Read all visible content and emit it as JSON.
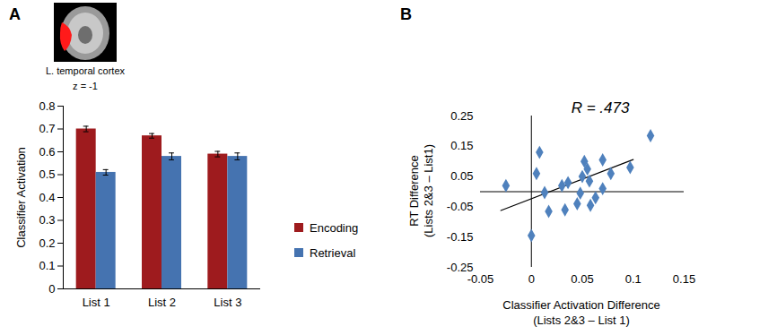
{
  "panel_labels": [
    "A",
    "B"
  ],
  "image": {
    "label": "L. temporal cortex",
    "slice": "z = -1"
  },
  "chart_data": [
    {
      "type": "bar",
      "categories": [
        "List 1",
        "List 2",
        "List 3"
      ],
      "series": [
        {
          "name": "Encoding",
          "color": "#9e1b1e",
          "values": [
            0.7,
            0.67,
            0.59
          ],
          "errors": [
            0.012,
            0.01,
            0.012
          ]
        },
        {
          "name": "Retrieval",
          "color": "#4573b0",
          "values": [
            0.51,
            0.58,
            0.58
          ],
          "errors": [
            0.012,
            0.015,
            0.015
          ]
        }
      ],
      "y_label": "Classifier Activation",
      "ylim": [
        0,
        0.8
      ],
      "yticks": [
        0,
        0.1,
        0.2,
        0.3,
        0.4,
        0.5,
        0.6,
        0.7,
        0.8
      ],
      "legend": "right",
      "grid": false
    },
    {
      "type": "scatter",
      "x": [
        -0.025,
        0.008,
        0.005,
        0,
        0.013,
        0.017,
        0.03,
        0.033,
        0.036,
        0.045,
        0.048,
        0.05,
        0.052,
        0.055,
        0.057,
        0.058,
        0.063,
        0.07,
        0.07,
        0.078,
        0.097,
        0.117
      ],
      "values": [
        0.02,
        0.13,
        0.06,
        -0.145,
        -0.003,
        -0.065,
        0.02,
        -0.06,
        0.03,
        -0.04,
        -0.005,
        0.05,
        0.1,
        0.075,
        0.035,
        -0.045,
        -0.02,
        0.105,
        0.01,
        0.06,
        0.08,
        0.185
      ],
      "color": "#4f81bd",
      "marker": "diamond",
      "trendline": {
        "x": [
          -0.03,
          0.1
        ],
        "values": [
          -0.062,
          0.106
        ]
      },
      "annotation": "R = .473",
      "x_label": "Classifier Activation Difference\n(Lists 2&3 – List 1)",
      "y_label": "RT Difference\n(Lists 2&3 – List1)",
      "xlim": [
        -0.05,
        0.15
      ],
      "xticks": [
        -0.05,
        0,
        0.05,
        0.1,
        0.15
      ],
      "ylim": [
        -0.25,
        0.25
      ],
      "yticks": [
        -0.25,
        -0.15,
        -0.05,
        0.05,
        0.15,
        0.25
      ],
      "grid": false
    }
  ]
}
